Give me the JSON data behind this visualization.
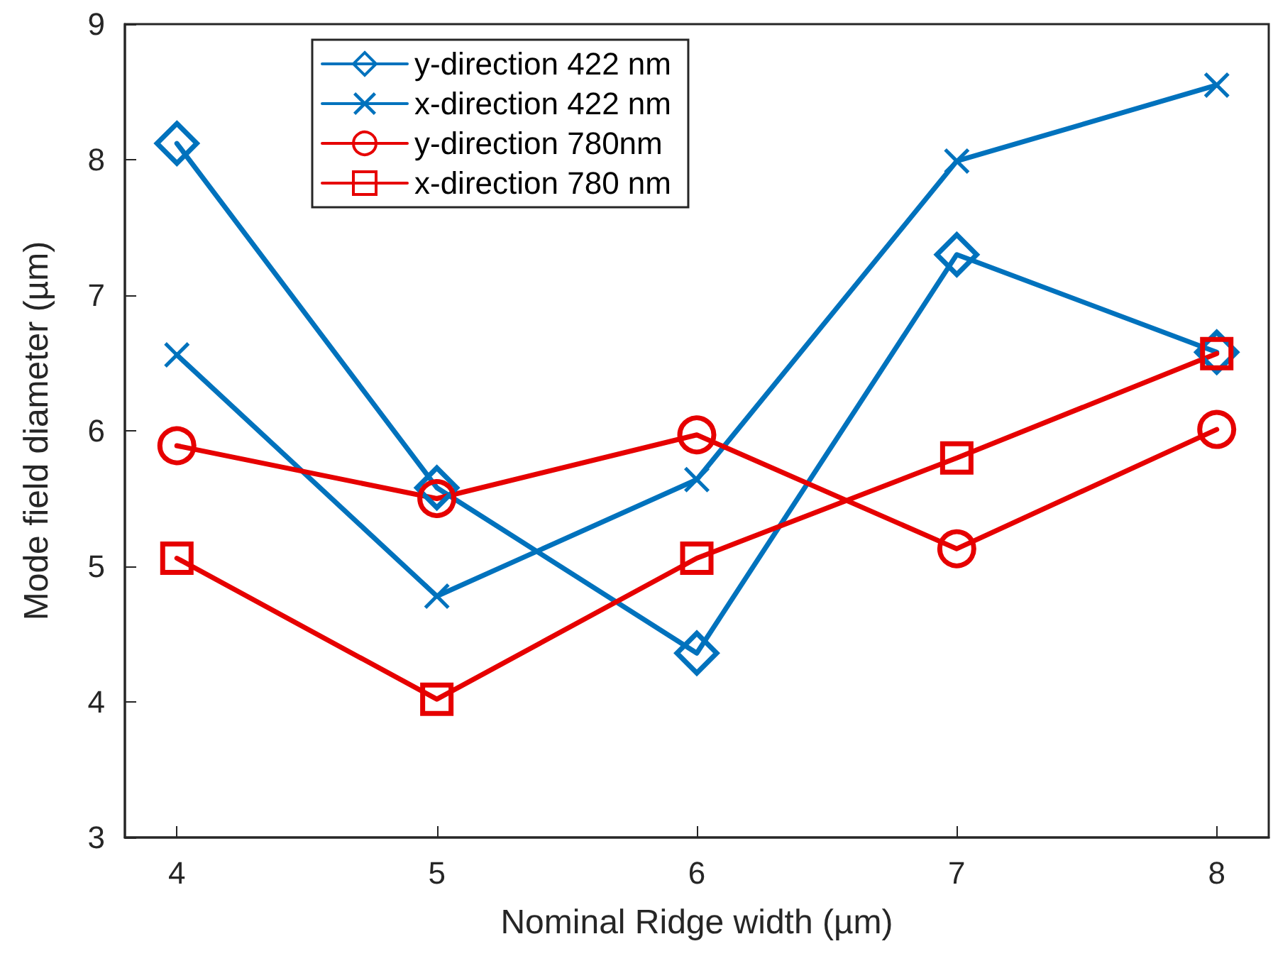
{
  "chart_data": {
    "type": "line",
    "xlabel": "Nominal Ridge width (µm)",
    "ylabel": "Mode field diameter (µm)",
    "x": [
      4,
      5,
      6,
      7,
      8
    ],
    "xlim": [
      3.8,
      8.2
    ],
    "xticks": [
      4,
      5,
      6,
      7,
      8
    ],
    "ylim": [
      3,
      9
    ],
    "yticks": [
      3,
      4,
      5,
      6,
      7,
      8,
      9
    ],
    "grid": false,
    "legend": "top left",
    "line_style": "solid",
    "series": [
      {
        "name": "y-direction 422 nm",
        "color": "#0072bd",
        "marker": "diamond",
        "values": [
          8.12,
          5.58,
          4.36,
          7.3,
          6.58
        ]
      },
      {
        "name": "x-direction 422 nm",
        "color": "#0072bd",
        "marker": "cross",
        "values": [
          6.56,
          4.78,
          5.64,
          7.99,
          8.55
        ]
      },
      {
        "name": "y-direction 780nm",
        "color": "#e60000",
        "marker": "circle",
        "values": [
          5.89,
          5.5,
          5.97,
          5.13,
          6.01
        ]
      },
      {
        "name": "x-direction 780 nm",
        "color": "#e60000",
        "marker": "square",
        "values": [
          5.06,
          4.02,
          5.06,
          5.8,
          6.57
        ]
      }
    ]
  }
}
